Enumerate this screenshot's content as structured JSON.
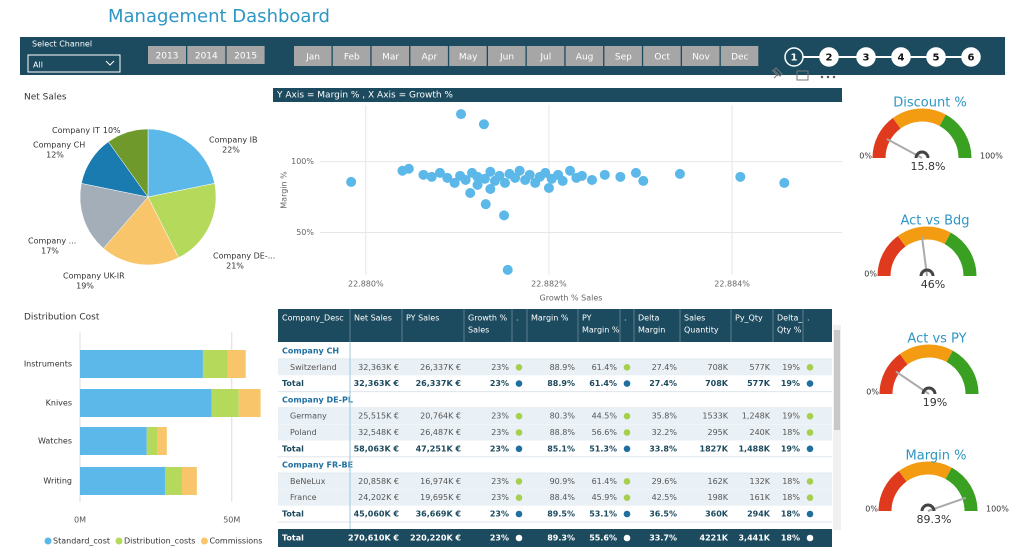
{
  "header": {
    "title": "Management Dashboard"
  },
  "filters": {
    "channel_label": "Select Channel",
    "channel_value": "All",
    "years": [
      "2013",
      "2014",
      "2015"
    ],
    "months": [
      "Jan",
      "Feb",
      "Mar",
      "Apr",
      "May",
      "Jun",
      "Jul",
      "Aug",
      "Sep",
      "Oct",
      "Nov",
      "Dec"
    ],
    "steps": [
      "1",
      "2",
      "3",
      "4",
      "5",
      "6"
    ]
  },
  "chart_data": [
    {
      "type": "pie",
      "title": "Net Sales",
      "categories": [
        "Company IB",
        "Company DE-...",
        "Company UK-IR",
        "Company ...",
        "Company CH",
        "Company IT"
      ],
      "values": [
        22,
        21,
        19,
        17,
        12,
        10
      ],
      "value_labels": [
        "22%",
        "21%",
        "19%",
        "17%",
        "12%",
        "10%"
      ],
      "colors": [
        "#5bb8e8",
        "#b5d95a",
        "#f8c56b",
        "#a3aeb8",
        "#1a7bb0",
        "#6f9a2b"
      ]
    },
    {
      "type": "scatter",
      "title": "Y Axis = Margin % , X Axis = Growth %",
      "x_label": "Growth % Sales",
      "y_label": "Margin %",
      "color": "#5bb8e8",
      "x": [
        22.88104,
        22.88129,
        22.87984,
        22.8804,
        22.88047,
        22.88063,
        22.88072,
        22.88081,
        22.88089,
        22.88097,
        22.88103,
        22.88109,
        22.88116,
        22.88122,
        22.8813,
        22.88136,
        22.88141,
        22.88146,
        22.88152,
        22.88157,
        22.88163,
        22.88168,
        22.88174,
        22.88179,
        22.88185,
        22.8819,
        22.88196,
        22.882,
        22.88203,
        22.8821,
        22.88215,
        22.88223,
        22.8823,
        22.88236,
        22.88247,
        22.88261,
        22.88278,
        22.88295,
        22.88303,
        22.88343,
        22.88409,
        22.88457,
        22.88131,
        22.88151,
        22.88155,
        22.88114,
        22.88136,
        22.88122
      ],
      "y": [
        133.6,
        126.4,
        85.7,
        93.6,
        95,
        90.7,
        89.3,
        92.1,
        88.6,
        85,
        90,
        87.1,
        92.1,
        89.3,
        87.9,
        92.9,
        86.4,
        90,
        85,
        91.4,
        88.6,
        93.6,
        87.1,
        90.7,
        85,
        89.3,
        92.1,
        81.4,
        87.9,
        90.7,
        86.4,
        93.6,
        88.6,
        90,
        87.1,
        90.7,
        89.3,
        92.1,
        86.4,
        91.4,
        89.3,
        85,
        70,
        62.1,
        23.6,
        77.9,
        80.7,
        83.6
      ],
      "xlim": [
        22.8795,
        22.8852
      ],
      "xticks": [
        {
          "value": 22.88,
          "label": "22.880%"
        },
        {
          "value": 22.882,
          "label": "22.882%"
        },
        {
          "value": 22.884,
          "label": "22.884%"
        }
      ],
      "ylim": [
        20,
        140
      ],
      "yticks": [
        {
          "value": 50,
          "label": "50%"
        },
        {
          "value": 100,
          "label": "100%"
        }
      ],
      "grid": true
    },
    {
      "type": "stacked_bar_h",
      "title": "Distribution Cost",
      "categories": [
        "Instruments",
        "Knives",
        "Watches",
        "Writing"
      ],
      "series": [
        {
          "name": "Standard_cost",
          "color": "#5bb8e8",
          "values": [
            40.5,
            43.4,
            22,
            28
          ]
        },
        {
          "name": "Distribution_costs",
          "color": "#b5d95a",
          "values": [
            8.2,
            8.9,
            3.6,
            5.6
          ]
        },
        {
          "name": "Commissions",
          "color": "#f8c56b",
          "values": [
            5.9,
            7.2,
            3,
            4.9
          ]
        }
      ],
      "xlim": [
        0,
        57
      ],
      "xticks": [
        {
          "value": 0,
          "label": "0M"
        },
        {
          "value": 50,
          "label": "50M"
        }
      ],
      "legend": "bottom"
    },
    {
      "type": "gauge",
      "title": "Discount %",
      "value": 15.8,
      "value_label": "15.8%",
      "ylim": [
        0,
        100
      ],
      "yticks": [
        {
          "value": 0,
          "label": "0%"
        },
        {
          "value": 100,
          "label": "100%"
        }
      ]
    },
    {
      "type": "gauge",
      "title": "Act vs Bdg",
      "value": 46,
      "value_label": "46%",
      "ylim": [
        0,
        100
      ],
      "yticks": [
        {
          "value": 0,
          "label": "0%"
        }
      ]
    },
    {
      "type": "gauge",
      "title": "Act vs PY",
      "value": 19,
      "value_label": "19%",
      "ylim": [
        0,
        100
      ],
      "yticks": [
        {
          "value": 0,
          "label": "0%"
        }
      ]
    },
    {
      "type": "gauge",
      "title": "Margin %",
      "value": 89.3,
      "value_label": "89.3%",
      "ylim": [
        0,
        100
      ],
      "yticks": [
        {
          "value": 0,
          "label": "0%"
        },
        {
          "value": 100,
          "label": "100%"
        }
      ]
    }
  ],
  "table": {
    "columns": [
      [
        "Company_Desc"
      ],
      [
        "Net Sales"
      ],
      [
        "PY Sales"
      ],
      [
        "Growth %",
        "Sales"
      ],
      [
        "."
      ],
      [
        "Margin %"
      ],
      [
        "PY",
        "Margin %"
      ],
      [
        "."
      ],
      [
        "Delta",
        "Margin"
      ],
      [
        "Sales",
        "Quantity"
      ],
      [
        "Py_Qty"
      ],
      [
        "Delta_",
        "Qty %"
      ],
      [
        "."
      ]
    ],
    "groups": [
      {
        "name": "Company CH",
        "rows": [
          [
            "Switzerland",
            "32,363K €",
            "26,337K €",
            "23%",
            "88.9%",
            "61.4%",
            "27.4%",
            "708K",
            "577K",
            "19%"
          ]
        ],
        "total": [
          "Total",
          "32,363K €",
          "26,337K €",
          "23%",
          "88.9%",
          "61.4%",
          "27.4%",
          "708K",
          "577K",
          "19%"
        ]
      },
      {
        "name": "Company DE-PL",
        "rows": [
          [
            "Germany",
            "25,515K €",
            "20,764K €",
            "23%",
            "80.3%",
            "44.5%",
            "35.8%",
            "1533K",
            "1,248K",
            "19%"
          ],
          [
            "Poland",
            "32,548K €",
            "26,487K €",
            "23%",
            "88.8%",
            "56.6%",
            "32.2%",
            "295K",
            "240K",
            "18%"
          ]
        ],
        "total": [
          "Total",
          "58,063K €",
          "47,251K €",
          "23%",
          "85.1%",
          "51.3%",
          "33.8%",
          "1827K",
          "1,488K",
          "19%"
        ]
      },
      {
        "name": "Company FR-BE",
        "rows": [
          [
            "BeNeLux",
            "20,858K €",
            "16,974K €",
            "23%",
            "90.9%",
            "61.4%",
            "29.6%",
            "162K",
            "132K",
            "18%"
          ],
          [
            "France",
            "24,202K €",
            "19,695K €",
            "23%",
            "88.4%",
            "45.9%",
            "42.5%",
            "198K",
            "161K",
            "18%"
          ]
        ],
        "total": [
          "Total",
          "45,060K €",
          "36,669K €",
          "23%",
          "89.5%",
          "53.1%",
          "36.5%",
          "360K",
          "294K",
          "18%"
        ]
      }
    ],
    "grand_total": [
      "Total",
      "270,610K €",
      "220,220K €",
      "23%",
      "89.3%",
      "55.6%",
      "33.7%",
      "4221K",
      "3,441K",
      "18%"
    ]
  }
}
